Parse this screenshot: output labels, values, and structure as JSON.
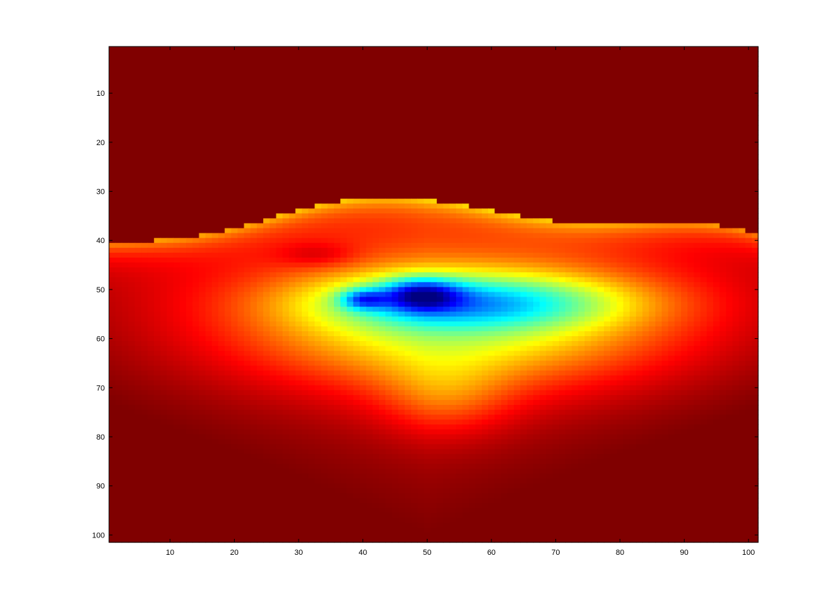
{
  "chart_data": {
    "type": "heatmap",
    "title": "",
    "xlabel": "",
    "ylabel": "",
    "colormap": "jet",
    "colorbar": false,
    "grid": false,
    "y_direction": "reversed",
    "xlim": [
      0.5,
      101.5
    ],
    "ylim": [
      0.5,
      101.5
    ],
    "xticks": [
      10,
      20,
      30,
      40,
      50,
      60,
      70,
      80,
      90,
      100
    ],
    "yticks": [
      10,
      20,
      30,
      40,
      50,
      60,
      70,
      80,
      90,
      100
    ],
    "grid_size": [
      101,
      101
    ],
    "value_range": [
      0,
      1
    ],
    "description_of_field": {
      "saturated_region_rows": [
        1,
        33
      ],
      "minimum_location": {
        "col": 40,
        "row": 52
      },
      "secondary_minimum_location": {
        "col": 50,
        "row": 51
      }
    },
    "row_profile_center_col_50": [
      {
        "row": 1,
        "value": 1.0
      },
      {
        "row": 33,
        "value": 0.95
      },
      {
        "row": 38,
        "value": 0.72
      },
      {
        "row": 42,
        "value": 0.55
      },
      {
        "row": 46,
        "value": 0.3
      },
      {
        "row": 51,
        "value": 0.03
      },
      {
        "row": 56,
        "value": 0.3
      },
      {
        "row": 62,
        "value": 0.5
      },
      {
        "row": 70,
        "value": 0.62
      },
      {
        "row": 80,
        "value": 0.74
      },
      {
        "row": 90,
        "value": 0.82
      },
      {
        "row": 101,
        "value": 0.9
      }
    ]
  }
}
